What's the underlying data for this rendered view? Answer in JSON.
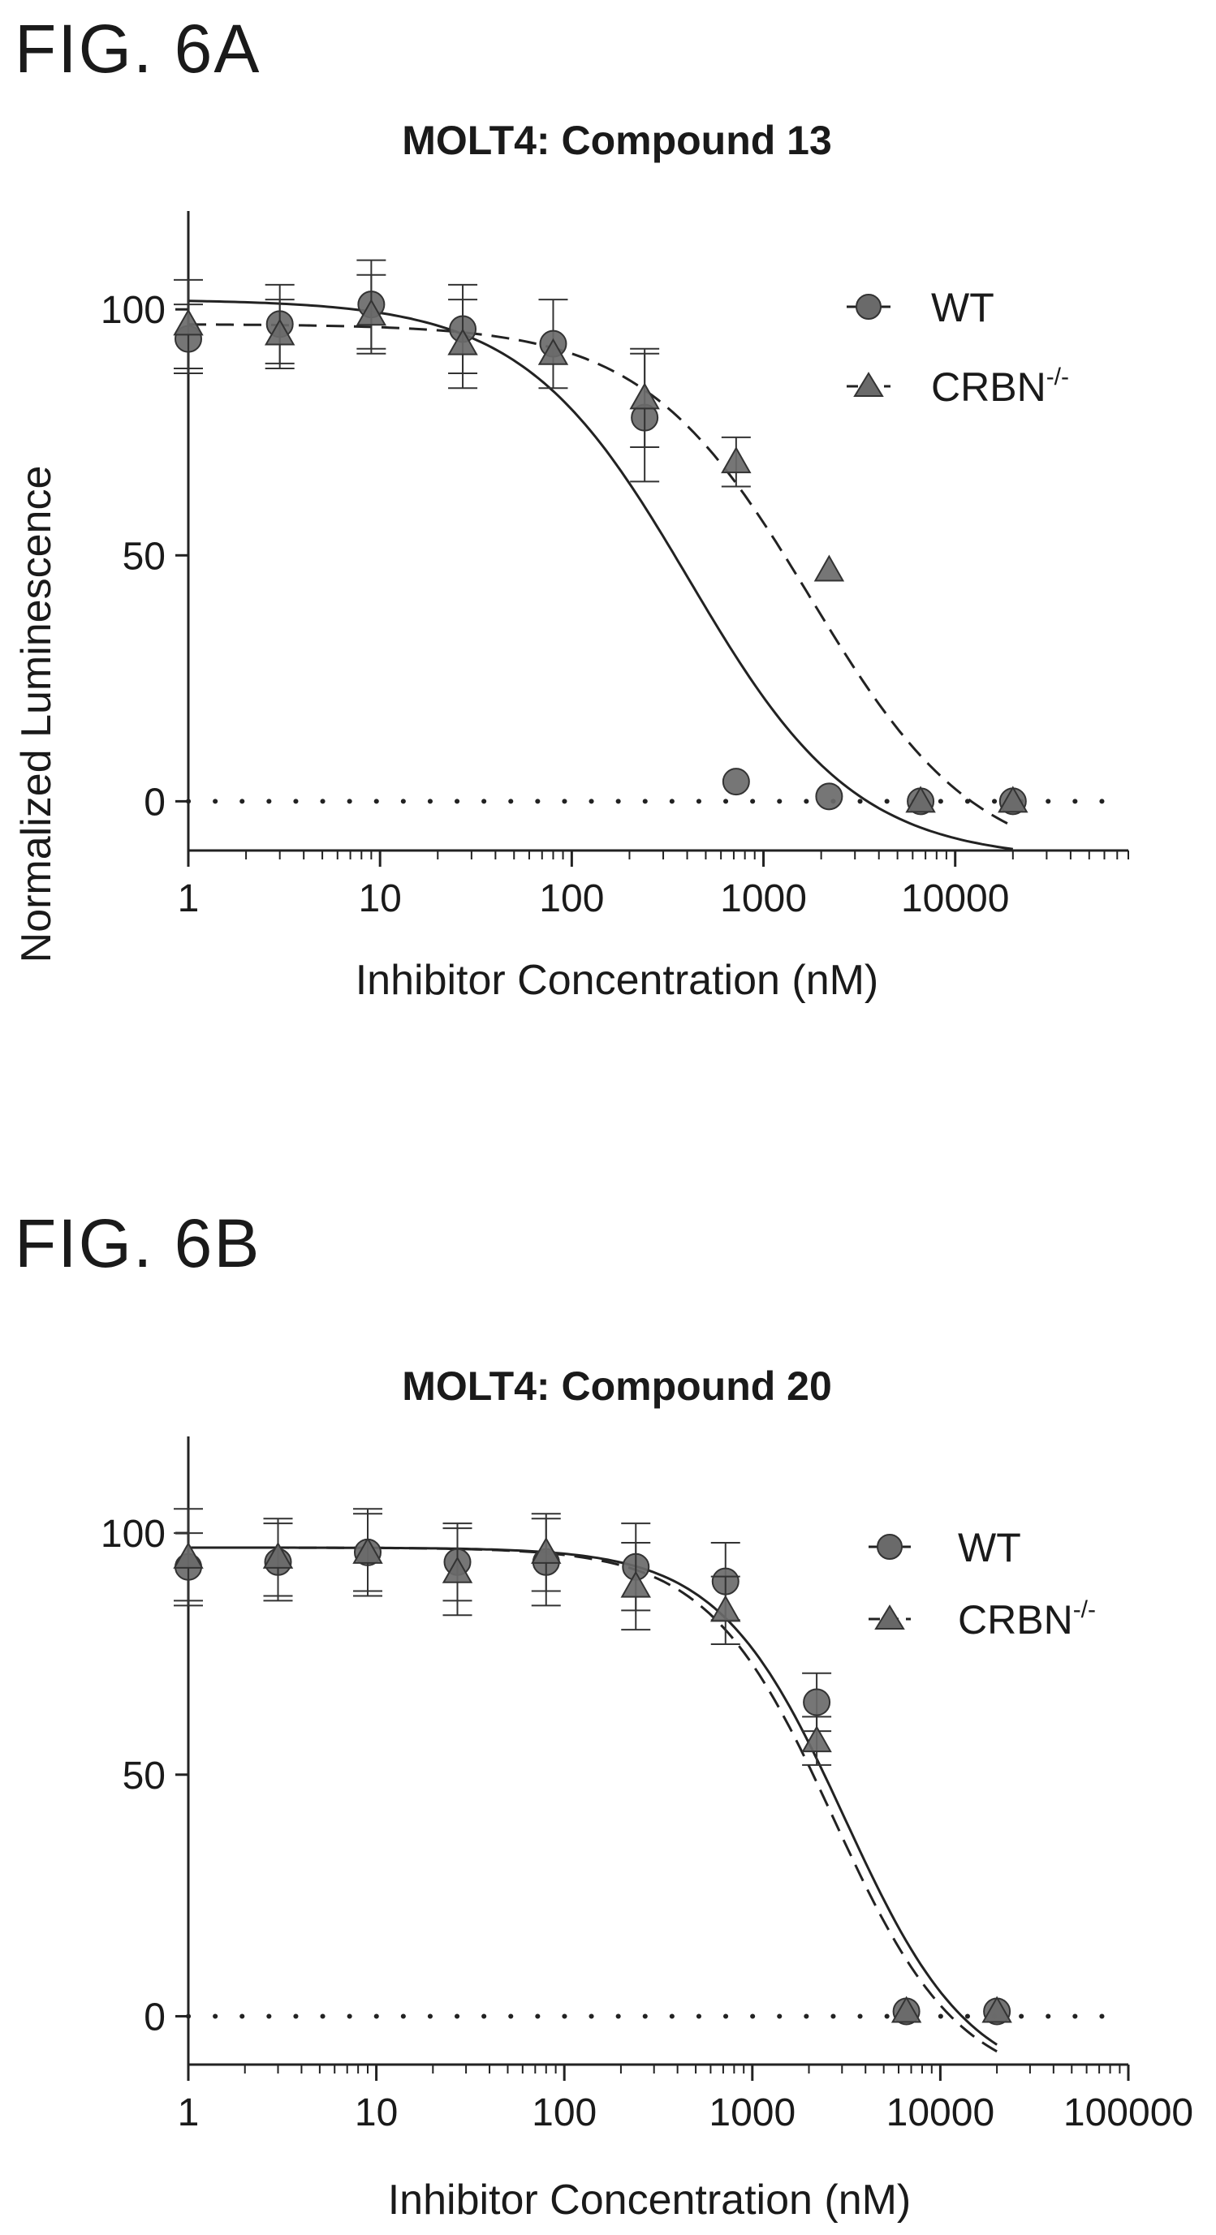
{
  "figures": [
    {
      "label": "FIG. 6A"
    },
    {
      "label": "FIG. 6B"
    }
  ],
  "chart_data": [
    {
      "type": "scatter",
      "title": "MOLT4: Compound 13",
      "xlabel": "Inhibitor Concentration (nM)",
      "ylabel": "Normalized Luminescence",
      "x_scale": "log",
      "xlim": [
        1,
        80000
      ],
      "ylim": [
        -10,
        120
      ],
      "x_ticks": [
        1,
        10,
        100,
        1000,
        10000
      ],
      "x_tick_labels": [
        "1",
        "10",
        "100",
        "1000",
        "10000"
      ],
      "y_ticks": [
        0,
        50,
        100
      ],
      "y_tick_labels": [
        "0",
        "50",
        "100"
      ],
      "reference_line": {
        "y": 0,
        "style": "dotted"
      },
      "legend": {
        "position": "top-right"
      },
      "series": [
        {
          "name": "WT",
          "marker": "circle",
          "line_style": "solid",
          "x": [
            1,
            3,
            9,
            27,
            80,
            240,
            720,
            2200,
            6600,
            20000
          ],
          "y": [
            94,
            97,
            101,
            96,
            93,
            78,
            4,
            1,
            0,
            0
          ],
          "err": [
            7,
            8,
            9,
            9,
            9,
            13,
            0,
            0,
            0,
            0
          ],
          "fit": {
            "top": 102,
            "bottom": -12,
            "ec50": 410,
            "hill": 1.0
          }
        },
        {
          "name": "CRBN-/-",
          "legend_base": "CRBN",
          "legend_sup": "-/-",
          "marker": "triangle",
          "line_style": "dashed",
          "x": [
            1,
            3,
            9,
            27,
            80,
            240,
            720,
            2200,
            6600,
            20000
          ],
          "y": [
            97,
            95,
            99,
            93,
            91,
            82,
            69,
            47,
            0,
            0
          ],
          "err": [
            9,
            7,
            8,
            9,
            0,
            10,
            5,
            0,
            0,
            0
          ],
          "fit": {
            "top": 97,
            "bottom": -14,
            "ec50": 1750,
            "hill": 1.0
          }
        }
      ]
    },
    {
      "type": "scatter",
      "title": "MOLT4: Compound 20",
      "xlabel": "Inhibitor Concentration (nM)",
      "ylabel": "",
      "x_scale": "log",
      "xlim": [
        1,
        100000
      ],
      "ylim": [
        -10,
        120
      ],
      "x_ticks": [
        1,
        10,
        100,
        1000,
        10000,
        100000
      ],
      "x_tick_labels": [
        "1",
        "10",
        "100",
        "1000",
        "10000",
        "100000"
      ],
      "y_ticks": [
        0,
        50,
        100
      ],
      "y_tick_labels": [
        "0",
        "50",
        "100"
      ],
      "reference_line": {
        "y": 0,
        "style": "dotted"
      },
      "legend": {
        "position": "top-right"
      },
      "series": [
        {
          "name": "WT",
          "marker": "circle",
          "line_style": "solid",
          "x": [
            1,
            3,
            9,
            27,
            80,
            240,
            720,
            2200,
            6600,
            20000
          ],
          "y": [
            93,
            94,
            96,
            94,
            94,
            93,
            90,
            65,
            1,
            1
          ],
          "err": [
            7,
            8,
            9,
            8,
            9,
            9,
            8,
            6,
            0,
            0
          ],
          "fit": {
            "top": 97,
            "bottom": -15,
            "ec50": 3100,
            "hill": 1.3
          }
        },
        {
          "name": "CRBN-/-",
          "legend_base": "CRBN",
          "legend_sup": "-/-",
          "marker": "triangle",
          "line_style": "dashed",
          "x": [
            1,
            3,
            9,
            27,
            80,
            240,
            720,
            2200,
            6600,
            20000
          ],
          "y": [
            95,
            95,
            96,
            92,
            96,
            89,
            84,
            57,
            1,
            1
          ],
          "err": [
            10,
            8,
            8,
            9,
            8,
            9,
            7,
            5,
            0,
            0
          ],
          "fit": {
            "top": 97,
            "bottom": -15,
            "ec50": 2700,
            "hill": 1.3
          }
        }
      ]
    }
  ]
}
